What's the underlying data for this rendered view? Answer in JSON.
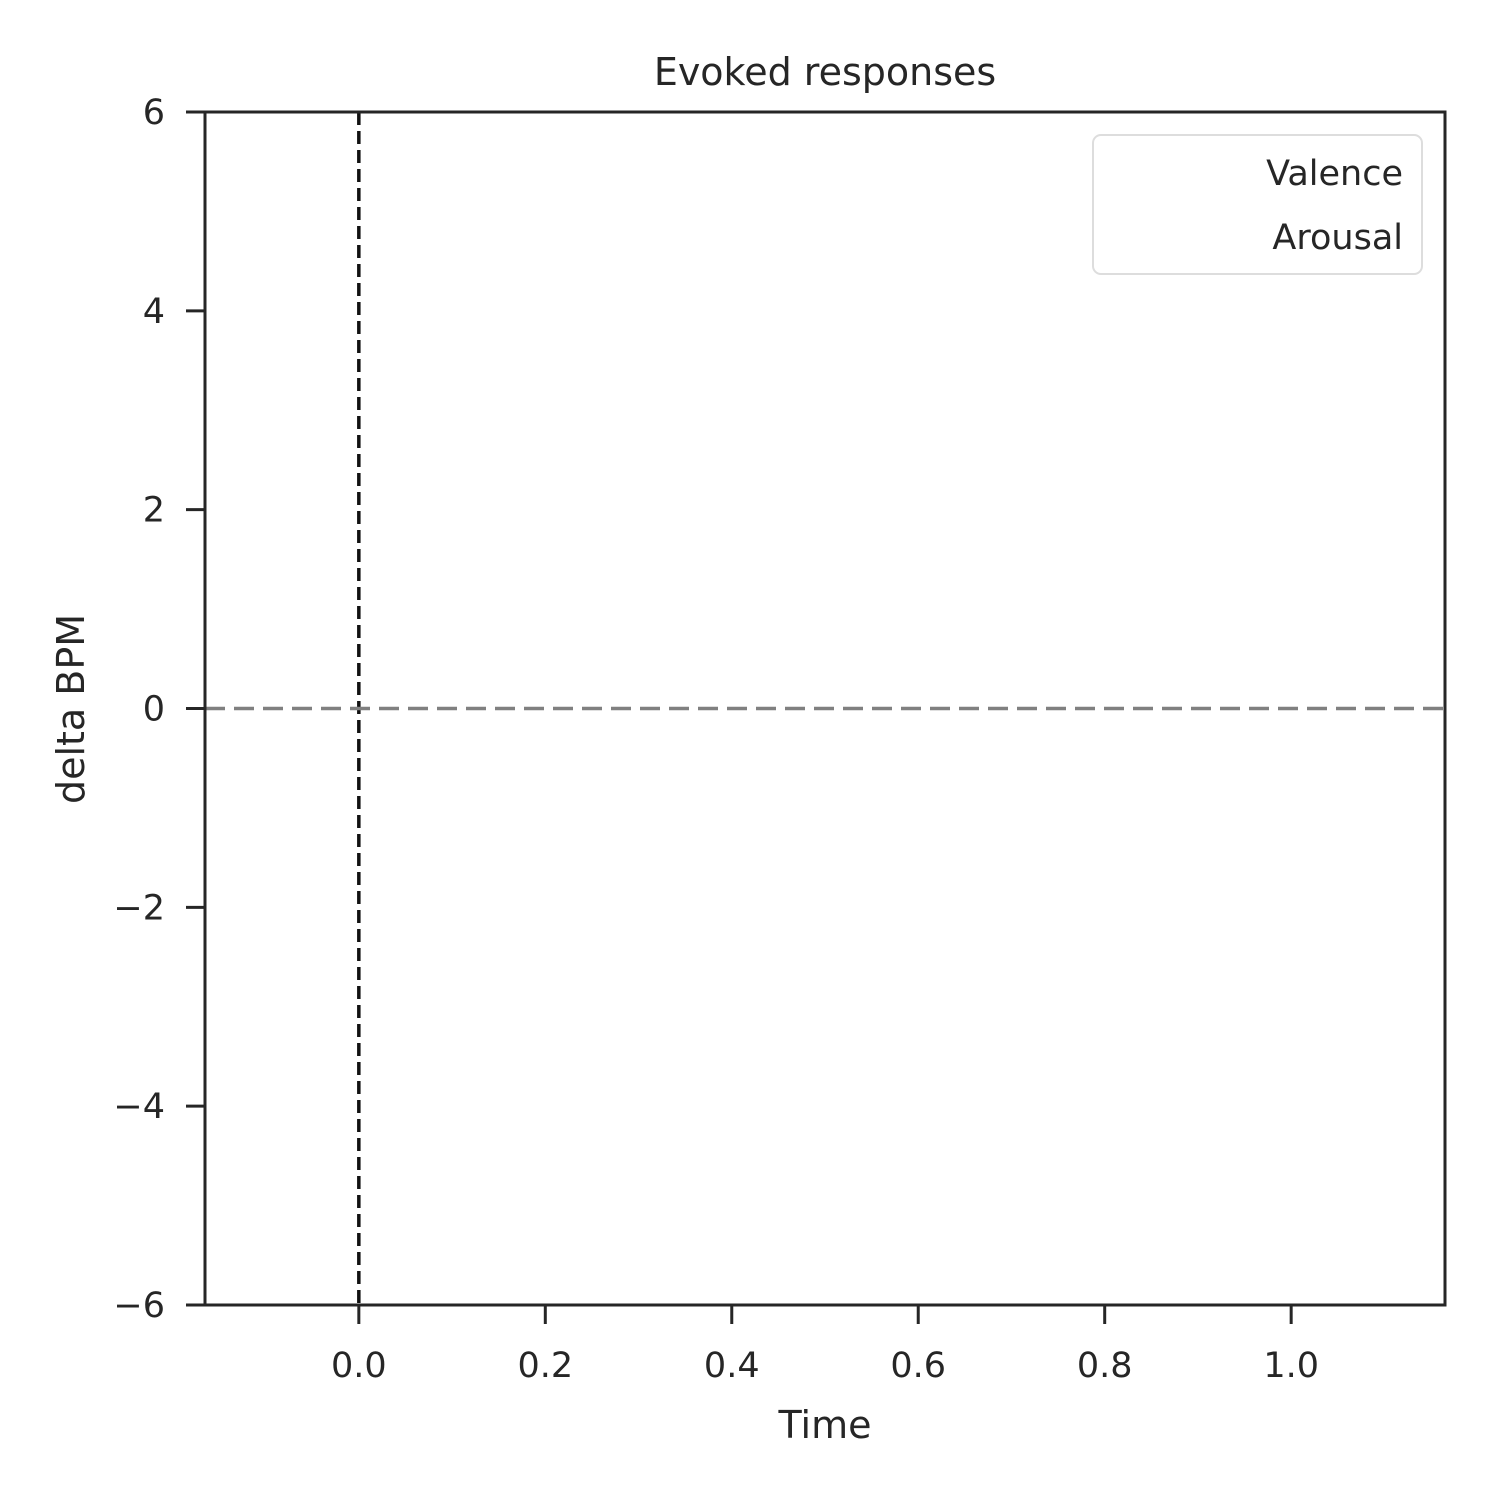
{
  "chart_data": {
    "type": "line",
    "title": "Evoked responses",
    "xlabel": "Time",
    "ylabel": "delta BPM",
    "xlim": [
      -0.165,
      1.165
    ],
    "ylim": [
      -6,
      6
    ],
    "xticks": [
      0.0,
      0.2,
      0.4,
      0.6,
      0.8,
      1.0
    ],
    "xtick_labels": [
      "0.0",
      "0.2",
      "0.4",
      "0.6",
      "0.8",
      "1.0"
    ],
    "yticks": [
      -6,
      -4,
      -2,
      0,
      2,
      4,
      6
    ],
    "ytick_labels": [
      "−6",
      "−4",
      "−2",
      "0",
      "2",
      "4",
      "6"
    ],
    "grid": false,
    "legend_position": "top-right",
    "series": [
      {
        "name": "Valence",
        "x": [],
        "y": []
      },
      {
        "name": "Arousal",
        "x": [],
        "y": []
      }
    ],
    "reference_lines": [
      {
        "orientation": "vertical",
        "x": 0.0,
        "style": "dashed",
        "color": "#111111"
      },
      {
        "orientation": "horizontal",
        "y": 0.0,
        "style": "dashed",
        "color": "#808080"
      }
    ]
  }
}
